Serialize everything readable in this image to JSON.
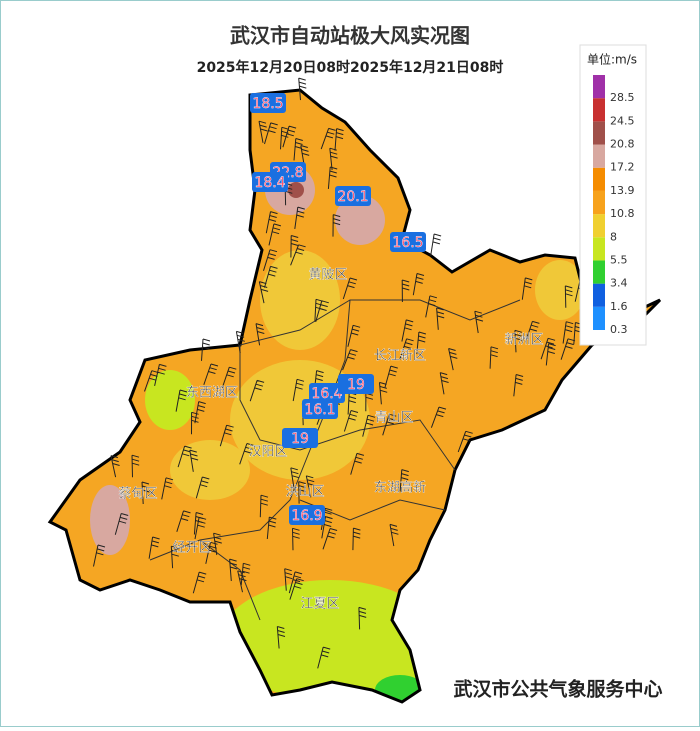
{
  "title": "武汉市自动站极大风实况图",
  "subtitle": "2025年12月20日08时2025年12月21日08时",
  "legend": {
    "unit": "单位:m/s",
    "levels": [
      "0.3",
      "1.6",
      "3.4",
      "5.5",
      "8",
      "10.8",
      "13.9",
      "17.2",
      "20.8",
      "24.5",
      "28.5"
    ],
    "colors": [
      "#1e90ff",
      "#1060e0",
      "#30d030",
      "#c8e620",
      "#f0d030",
      "#f7a21c",
      "#f58c00",
      "#d8a8a0",
      "#a0504a",
      "#c83030",
      "#a030a8"
    ]
  },
  "districts": [
    "黄陂区",
    "新洲区",
    "长江新区",
    "东西湖区",
    "青山区",
    "汉阳区",
    "蔡甸区",
    "经开区",
    "洪山区",
    "东湖高新",
    "江夏区"
  ],
  "stations": [
    "18.5",
    "22.8",
    "18.4",
    "20.1",
    "16.5",
    "16.4",
    "19",
    "16.1",
    "19",
    "16.9"
  ],
  "footer": "武汉市公共气象服务中心"
}
